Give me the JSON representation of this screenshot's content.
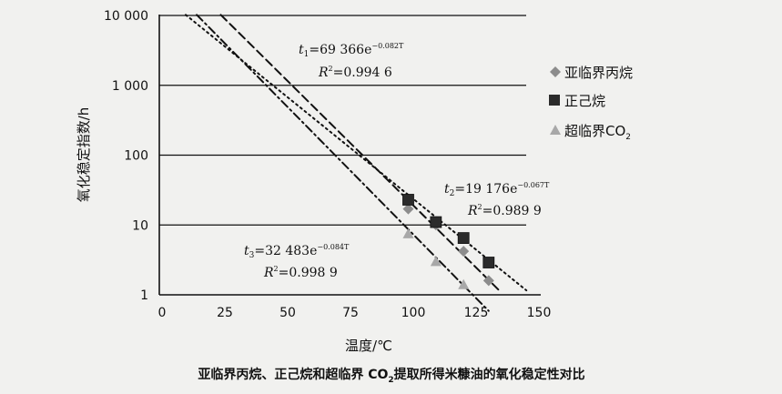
{
  "chart_data": {
    "type": "scatter",
    "title": "亚临界丙烷、正己烷和超临界 CO2提取所得米糠油的氧化稳定性对比",
    "xlabel": "温度/℃",
    "ylabel": "氧化稳定指数/h",
    "xlim": [
      0,
      150
    ],
    "ylim": [
      1,
      10000
    ],
    "yscale": "log",
    "x_ticks": [
      "0",
      "25",
      "50",
      "75",
      "100",
      "125",
      "150"
    ],
    "y_ticks": [
      "1",
      "10",
      "100",
      "1 000",
      "10 000"
    ],
    "grid": "horizontal",
    "legend_position": "right",
    "series": [
      {
        "name": "亚临界丙烷",
        "marker": "diamond",
        "color": "#8c8c8c",
        "x": [
          98,
          109,
          120,
          130
        ],
        "y": [
          17,
          10,
          4.2,
          1.6
        ],
        "fit": {
          "label": "t1=69 366e-0.082T",
          "r2": "R2=0.994 6",
          "a": 69366,
          "b": -0.082,
          "line": "dashed"
        }
      },
      {
        "name": "正己烷",
        "marker": "square",
        "color": "#2b2b2b",
        "x": [
          98,
          109,
          120,
          130
        ],
        "y": [
          23,
          11,
          6.5,
          2.9
        ],
        "fit": {
          "label": "t2=19 176e-0.067T",
          "r2": "R2=0.989 9",
          "a": 19176,
          "b": -0.067,
          "line": "dotted"
        }
      },
      {
        "name": "超临界CO2",
        "marker": "triangle",
        "color": "#a8a8a8",
        "x": [
          98,
          109,
          120
        ],
        "y": [
          7.5,
          3,
          1.4
        ],
        "fit": {
          "label": "t3=32 483e-0.084T",
          "r2": "R2=0.998 9",
          "a": 32483,
          "b": -0.084,
          "line": "dashdot"
        }
      }
    ],
    "annotations": {
      "t1": {
        "var": "t",
        "sub": "1",
        "body": "=69 366e",
        "exp": "−0.082T",
        "r2_val": "=0.994 6"
      },
      "t2": {
        "var": "t",
        "sub": "2",
        "body": "=19 176e",
        "exp": "−0.067T",
        "r2_val": "=0.989 9"
      },
      "t3": {
        "var": "t",
        "sub": "3",
        "body": "=32 483e",
        "exp": "−0.084T",
        "r2_val": "=0.998 9"
      }
    },
    "legend": {
      "propane": "亚临界丙烷",
      "hexane": "正己烷",
      "co2_main": "超临界CO",
      "co2_sub": "2"
    },
    "caption": {
      "main": "亚临界丙烷、正己烷和超临界 CO",
      "sub": "2",
      "rest": "提取所得米糠油的氧化稳定性对比"
    }
  }
}
